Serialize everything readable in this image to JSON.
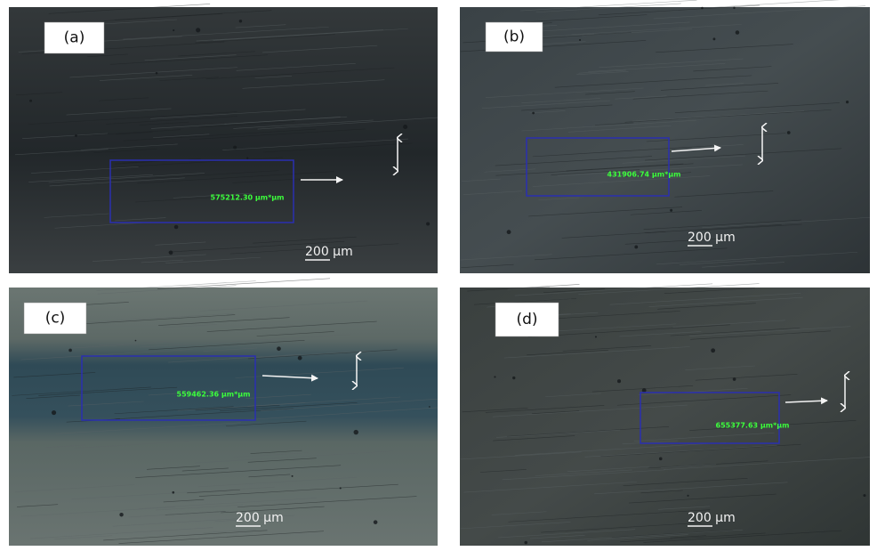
{
  "panels": [
    {
      "label": "(a)",
      "area": "575212.30 µm*µm",
      "scale_bar": "200 µm"
    },
    {
      "label": "(b)",
      "area": "431906.74 µm*µm",
      "scale_bar": "200 µm"
    },
    {
      "label": "(c)",
      "area": "559462.36 µm*µm",
      "scale_bar": "200 µm"
    },
    {
      "label": "(d)",
      "area": "655377.63 µm*µm",
      "scale_bar": "200 µm"
    }
  ]
}
